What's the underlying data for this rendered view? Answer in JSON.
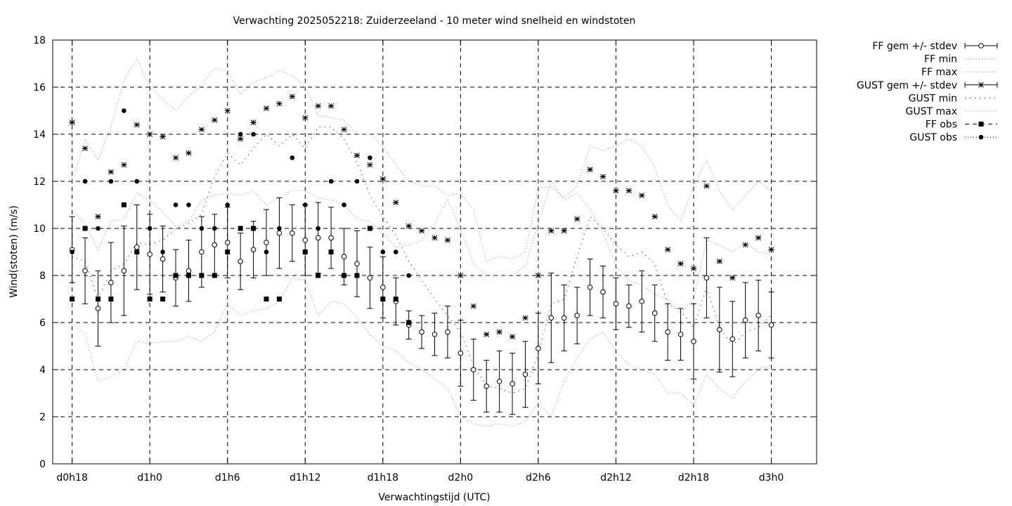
{
  "chart_data": {
    "type": "line",
    "title": "Verwachting 2025052218: Zuiderzeeland - 10 meter wind snelheid en windstoten",
    "xlabel": "Verwachtingstijd (UTC)",
    "ylabel": "Wind(stoten) (m/s)",
    "ylim": [
      0,
      18
    ],
    "xlim": [
      -1.5,
      57.5
    ],
    "xlim_unit": "forecast hour from d0h18",
    "y_ticks": [
      0,
      2,
      4,
      6,
      8,
      10,
      12,
      14,
      16,
      18
    ],
    "x_ticks": [
      {
        "label": "d0h18",
        "x": 0
      },
      {
        "label": "d1h0",
        "x": 6
      },
      {
        "label": "d1h6",
        "x": 12
      },
      {
        "label": "d1h12",
        "x": 18
      },
      {
        "label": "d1h18",
        "x": 24
      },
      {
        "label": "d2h0",
        "x": 30
      },
      {
        "label": "d2h6",
        "x": 36
      },
      {
        "label": "d2h12",
        "x": 42
      },
      {
        "label": "d2h18",
        "x": 48
      },
      {
        "label": "d3h0",
        "x": 54
      }
    ],
    "grid": true,
    "legend_position": "outside-right",
    "x": [
      0,
      1,
      2,
      3,
      4,
      5,
      6,
      7,
      8,
      9,
      10,
      11,
      12,
      13,
      14,
      15,
      16,
      17,
      18,
      19,
      20,
      21,
      22,
      23,
      24,
      25,
      26,
      27,
      28,
      29,
      30,
      31,
      32,
      33,
      34,
      35,
      36,
      37,
      38,
      39,
      40,
      41,
      42,
      43,
      44,
      45,
      46,
      47,
      48,
      49,
      50,
      51,
      52,
      53,
      54
    ],
    "series": [
      {
        "name": "FF gem +/- stdev",
        "style": "errorbar-open-circle",
        "values": [
          9.1,
          8.2,
          6.6,
          7.7,
          8.2,
          9.2,
          8.9,
          8.7,
          7.9,
          8.2,
          9.0,
          9.3,
          9.4,
          8.6,
          9.1,
          9.4,
          9.8,
          9.8,
          9.5,
          9.6,
          9.6,
          8.8,
          8.5,
          7.9,
          7.5,
          6.9,
          5.9,
          5.6,
          5.5,
          5.6,
          4.7,
          4.0,
          3.3,
          3.5,
          3.4,
          3.8,
          4.9,
          6.2,
          6.2,
          6.3,
          7.5,
          7.3,
          6.8,
          6.7,
          6.9,
          6.4,
          5.6,
          5.5,
          5.2,
          7.9,
          5.7,
          5.3,
          6.1,
          6.3,
          5.9
        ],
        "stdev": [
          1.4,
          1.4,
          1.6,
          1.7,
          1.9,
          1.8,
          1.7,
          1.4,
          1.2,
          1.3,
          1.5,
          1.3,
          1.5,
          1.2,
          1.2,
          1.4,
          1.5,
          1.2,
          1.5,
          1.5,
          1.3,
          1.2,
          1.4,
          1.3,
          1.3,
          1.0,
          0.6,
          0.7,
          0.9,
          1.1,
          1.4,
          1.3,
          1.1,
          1.3,
          1.3,
          1.4,
          1.5,
          1.9,
          1.4,
          1.2,
          1.2,
          1.1,
          1.1,
          0.9,
          1.3,
          1.2,
          1.2,
          1.1,
          1.6,
          1.7,
          1.8,
          1.6,
          1.6,
          1.5,
          1.4
        ]
      },
      {
        "name": "FF min",
        "style": "dotted",
        "values": [
          6.0,
          5.5,
          3.5,
          3.7,
          4.0,
          5.2,
          5.1,
          5.2,
          5.2,
          5.4,
          5.2,
          5.6,
          6.8,
          6.3,
          6.5,
          6.6,
          6.9,
          7.9,
          7.8,
          6.3,
          6.9,
          6.8,
          6.2,
          5.5,
          5.0,
          4.8,
          4.3,
          4.0,
          3.6,
          3.2,
          2.0,
          1.7,
          1.6,
          1.7,
          1.6,
          1.8,
          2.6,
          2.0,
          3.5,
          4.5,
          5.3,
          5.6,
          4.8,
          4.2,
          4.0,
          3.8,
          3.0,
          3.0,
          2.5,
          3.8,
          3.2,
          2.8,
          3.5,
          4.0,
          4.2
        ]
      },
      {
        "name": "FF max",
        "style": "dotted",
        "values": [
          10.8,
          10.2,
          9.1,
          10.3,
          10.4,
          11.5,
          11.2,
          10.7,
          10.1,
          10.3,
          11.2,
          11.4,
          11.5,
          11.4,
          11.6,
          11.0,
          11.3,
          11.6,
          11.6,
          11.3,
          11.2,
          11.0,
          10.4,
          10.3,
          9.8,
          9.2,
          9.3,
          9.5,
          10.2,
          11.2,
          10.0,
          8.5,
          8.0,
          8.0,
          8.0,
          8.4,
          10.2,
          12.0,
          11.2,
          11.5,
          10.8,
          9.8,
          8.4,
          7.8,
          7.6,
          7.2,
          7.0,
          6.4,
          7.0,
          9.5,
          9.3,
          9.0,
          9.4,
          9.0,
          8.9
        ]
      },
      {
        "name": "GUST gem +/- stdev",
        "style": "errorbar-star",
        "values": [
          14.5,
          13.4,
          10.5,
          12.4,
          12.7,
          14.4,
          14.0,
          13.9,
          13.0,
          13.2,
          14.2,
          14.6,
          15.0,
          13.8,
          14.5,
          15.1,
          15.3,
          15.6,
          14.7,
          15.2,
          15.2,
          14.2,
          13.1,
          12.7,
          12.1,
          11.1,
          10.1,
          9.9,
          9.6,
          9.5,
          8.0,
          6.7,
          5.5,
          5.6,
          5.4,
          6.2,
          8.0,
          9.9,
          9.9,
          10.4,
          12.5,
          12.2,
          11.6,
          11.6,
          11.4,
          10.5,
          9.1,
          8.5,
          8.3,
          11.8,
          8.6,
          7.9,
          9.3,
          9.6,
          9.1
        ]
      },
      {
        "name": "GUST min",
        "style": "loose-dotted",
        "values": [
          8.8,
          8.6,
          7.0,
          8.2,
          8.5,
          9.4,
          9.3,
          9.5,
          10.0,
          10.2,
          10.6,
          12.2,
          13.2,
          12.7,
          13.4,
          14.0,
          13.5,
          14.0,
          13.4,
          14.3,
          14.3,
          13.8,
          12.8,
          11.4,
          10.5,
          9.7,
          8.6,
          7.8,
          7.0,
          6.3,
          5.6,
          4.2,
          3.3,
          3.2,
          3.0,
          3.2,
          4.7,
          6.8,
          7.0,
          8.8,
          10.5,
          10.0,
          9.3,
          8.8,
          9.0,
          8.5,
          6.8,
          6.5,
          5.8,
          7.5,
          5.8,
          5.0,
          5.6,
          5.8,
          6.3
        ]
      },
      {
        "name": "GUST max",
        "style": "dotted",
        "values": [
          12.0,
          13.8,
          12.9,
          14.3,
          16.3,
          17.2,
          16.0,
          15.5,
          15.0,
          15.6,
          16.1,
          16.8,
          16.7,
          15.7,
          16.2,
          16.4,
          16.7,
          16.5,
          16.0,
          14.8,
          14.7,
          14.6,
          14.0,
          14.0,
          13.5,
          12.7,
          12.0,
          11.8,
          11.8,
          11.4,
          11.5,
          10.8,
          8.6,
          8.8,
          8.7,
          9.0,
          11.7,
          11.8,
          11.3,
          11.8,
          13.5,
          13.3,
          13.5,
          13.8,
          13.5,
          12.6,
          11.0,
          10.3,
          11.8,
          12.9,
          11.6,
          10.8,
          11.4,
          12.0,
          11.6
        ]
      },
      {
        "name": "FF obs",
        "style": "filled-square",
        "x": [
          0,
          1,
          2,
          3,
          4,
          5,
          6,
          7,
          8,
          9,
          10,
          11,
          12,
          13,
          14,
          15,
          16,
          18,
          19,
          20,
          21,
          22,
          23,
          24,
          25,
          26
        ],
        "values": [
          7,
          10,
          7,
          7,
          11,
          9,
          7,
          7,
          8,
          8,
          8,
          8,
          9,
          10,
          10,
          7,
          7,
          9,
          8,
          9,
          8,
          8,
          10,
          7,
          7,
          6
        ]
      },
      {
        "name": "GUST obs",
        "style": "filled-circle",
        "x": [
          0,
          1,
          2,
          3,
          4,
          5,
          6,
          7,
          8,
          9,
          10,
          11,
          12,
          13,
          14,
          15,
          16,
          17,
          18,
          19,
          20,
          21,
          22,
          23,
          24,
          25,
          26
        ],
        "values": [
          9,
          12,
          10,
          12,
          15,
          12,
          10,
          9,
          11,
          11,
          10,
          10,
          11,
          14,
          14,
          9,
          10,
          13,
          11,
          10,
          12,
          11,
          12,
          13,
          9,
          9,
          8
        ]
      }
    ]
  }
}
